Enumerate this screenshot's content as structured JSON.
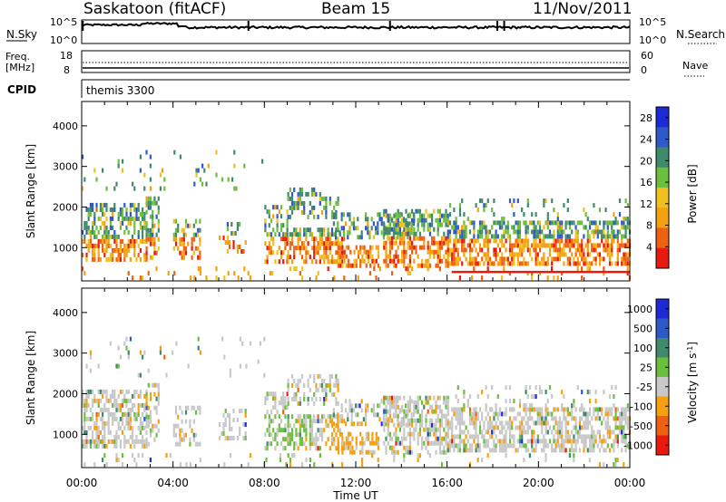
{
  "header": {
    "radar": "Saskatoon (fitACF)",
    "beam": "Beam 15",
    "date": "11/Nov/2011"
  },
  "top_panel": {
    "left_label": "N.Sky",
    "right_label": "N.Search",
    "left_ticks": [
      "10^5",
      "10^0"
    ],
    "right_ticks": [
      "10^5",
      "10^0"
    ]
  },
  "freq_panel": {
    "left_label_1": "Freq.",
    "left_label_2": "[MHz]",
    "right_label": "Nave",
    "left_ticks": [
      "18",
      "8"
    ],
    "right_ticks": [
      "60",
      "0"
    ]
  },
  "cpid_panel": {
    "label": "CPID",
    "program": "themis 3300"
  },
  "chart_data": [
    {
      "type": "heatmap",
      "parameter": "Power",
      "ylabel": "Slant Range [km]",
      "xlabel": "Time UT",
      "ylim": [
        180,
        4600
      ],
      "yticks": [
        "1000",
        "2000",
        "3000",
        "4000"
      ],
      "ytick_values": [
        1000,
        2000,
        3000,
        4000
      ],
      "colorbar_label": "Power [dB]",
      "colorbar_ticks": [
        "4",
        "8",
        "12",
        "16",
        "20",
        "24",
        "28"
      ],
      "colorbar_range": [
        0,
        30
      ],
      "colors": [
        "#1d2bd6",
        "#2f58c8",
        "#3f8a6a",
        "#6cbf3c",
        "#f0c020",
        "#f5a010",
        "#ee6012",
        "#e81a10"
      ]
    },
    {
      "type": "heatmap",
      "parameter": "Velocity",
      "ylabel": "Slant Range [km]",
      "xlabel": "Time UT",
      "ylim": [
        180,
        4600
      ],
      "yticks": [
        "1000",
        "2000",
        "3000",
        "4000"
      ],
      "ytick_values": [
        1000,
        2000,
        3000,
        4000
      ],
      "colorbar_label": "Velocity [m s",
      "colorbar_label_sup": "-1",
      "colorbar_label_end": "]",
      "colorbar_ticks": [
        "1000",
        "500",
        "100",
        "25",
        "-25",
        "-100",
        "-500",
        "-1000"
      ],
      "colors": [
        "#1d2bd6",
        "#2f58c8",
        "#3f8a6a",
        "#6cbf3c",
        "#c8c8c8",
        "#f5a010",
        "#ee6012",
        "#e81a10"
      ]
    }
  ],
  "time_axis": {
    "label": "Time UT",
    "ticks": [
      "00:00",
      "04:00",
      "08:00",
      "12:00",
      "16:00",
      "20:00",
      "00:00"
    ],
    "tick_hours": [
      0,
      4,
      8,
      12,
      16,
      20,
      24
    ]
  }
}
